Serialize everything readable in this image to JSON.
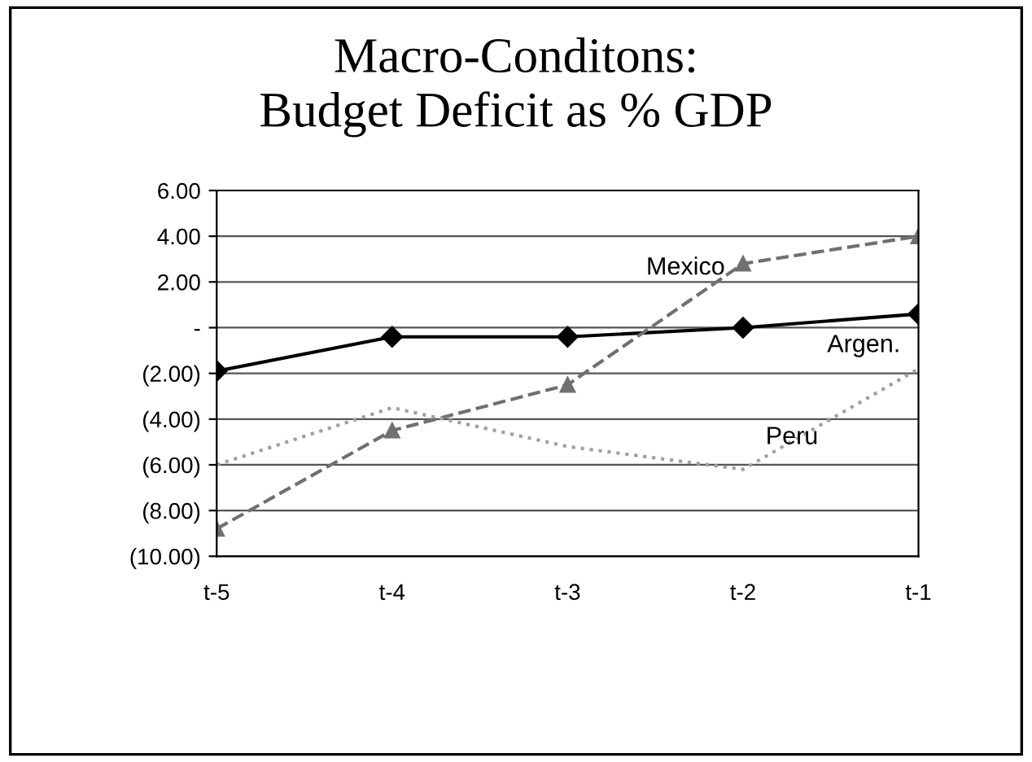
{
  "chart_data": {
    "type": "line",
    "title": "Macro-Conditons:\nBudget Deficit as % GDP",
    "categories": [
      "t-5",
      "t-4",
      "t-3",
      "t-2",
      "t-1"
    ],
    "series": [
      {
        "name": "Argen.",
        "color": "#000000",
        "values": [
          -1.9,
          -0.4,
          -0.4,
          0.0,
          0.6
        ],
        "marker": "diamond",
        "line_style": "solid"
      },
      {
        "name": "Mexico",
        "color": "#707070",
        "values": [
          -8.8,
          -4.5,
          -2.5,
          2.8,
          4.0
        ],
        "marker": "triangle",
        "line_style": "dashed"
      },
      {
        "name": "Peru",
        "color": "#a0a0a0",
        "values": [
          -6.0,
          -3.5,
          -5.2,
          -6.2,
          -1.8
        ],
        "marker": "none",
        "line_style": "dotted"
      }
    ],
    "ylim": [
      -10,
      6
    ],
    "yticks": [
      {
        "value": 6,
        "label": "6.00"
      },
      {
        "value": 4,
        "label": "4.00"
      },
      {
        "value": 2,
        "label": "2.00"
      },
      {
        "value": 0,
        "label": "-"
      },
      {
        "value": -2,
        "label": "(2.00)"
      },
      {
        "value": -4,
        "label": "(4.00)"
      },
      {
        "value": -6,
        "label": "(6.00)"
      },
      {
        "value": -8,
        "label": "(8.00)"
      },
      {
        "value": -10,
        "label": "(10.00)"
      }
    ],
    "grid": "y",
    "legend": false
  }
}
